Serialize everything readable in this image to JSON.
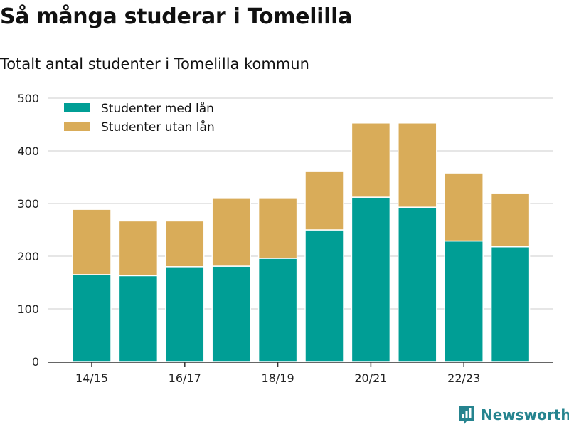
{
  "header": {
    "title": "Så många studerar i Tomelilla",
    "subtitle": "Totalt antal studenter i Tomelilla kommun"
  },
  "brand": {
    "name": "Newsworthy",
    "color": "#26848f"
  },
  "chart_data": {
    "type": "bar",
    "stacked": true,
    "categories": [
      "14/15",
      "15/16",
      "16/17",
      "17/18",
      "18/19",
      "19/20",
      "20/21",
      "21/22",
      "22/23",
      "23/24"
    ],
    "tick_labels": [
      "14/15",
      "",
      "16/17",
      "",
      "18/19",
      "",
      "20/21",
      "",
      "22/23",
      ""
    ],
    "series": [
      {
        "name": "Studenter med lån",
        "color": "#009e95",
        "values": [
          165,
          163,
          180,
          181,
          196,
          250,
          312,
          293,
          229,
          218
        ]
      },
      {
        "name": "Studenter utan lån",
        "color": "#d9ac59",
        "values": [
          124,
          104,
          87,
          130,
          115,
          112,
          141,
          160,
          129,
          102
        ]
      }
    ],
    "ylim": [
      0,
      500
    ],
    "yticks": [
      0,
      100,
      200,
      300,
      400,
      500
    ],
    "grid": true,
    "legend": "top-left"
  }
}
